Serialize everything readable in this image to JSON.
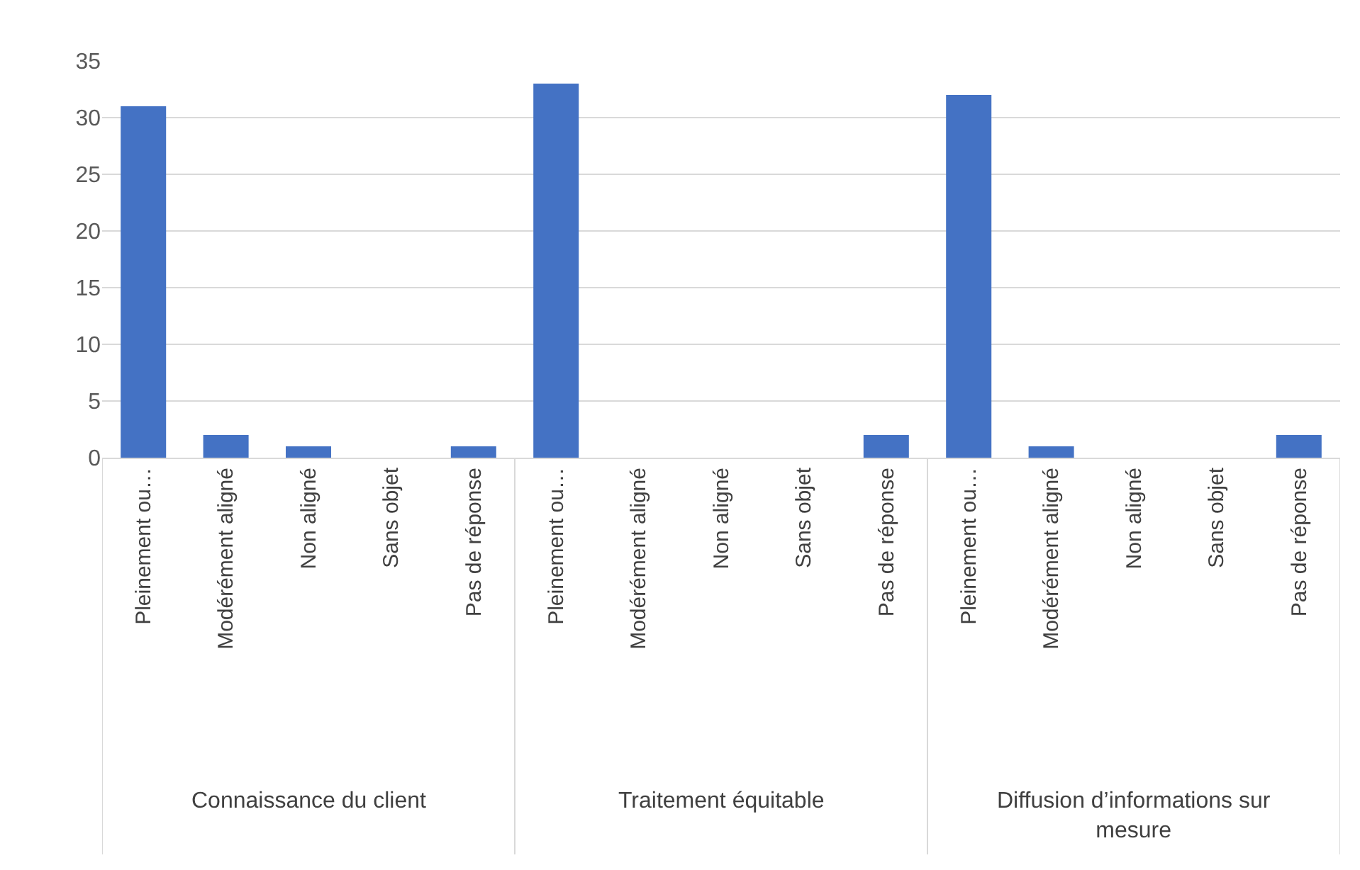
{
  "chart_data": {
    "type": "bar",
    "categories": [
      "Pleinement ou…",
      "Modérément aligné",
      "Non aligné",
      "Sans objet",
      "Pas de réponse",
      "Pleinement ou…",
      "Modérément aligné",
      "Non aligné",
      "Sans objet",
      "Pas de réponse",
      "Pleinement ou…",
      "Modérément aligné",
      "Non aligné",
      "Sans objet",
      "Pas de réponse"
    ],
    "values": [
      31,
      2,
      1,
      0,
      1,
      33,
      0,
      0,
      0,
      2,
      32,
      1,
      0,
      0,
      2
    ],
    "color": "#4472c4",
    "ylim": [
      0,
      35
    ],
    "yticks": [
      0,
      5,
      10,
      15,
      20,
      25,
      30,
      35
    ],
    "grid": "y",
    "annotations": [
      "Connaissance du client",
      "Traitement équitable",
      "Diffusion d’informations sur mesure"
    ]
  }
}
